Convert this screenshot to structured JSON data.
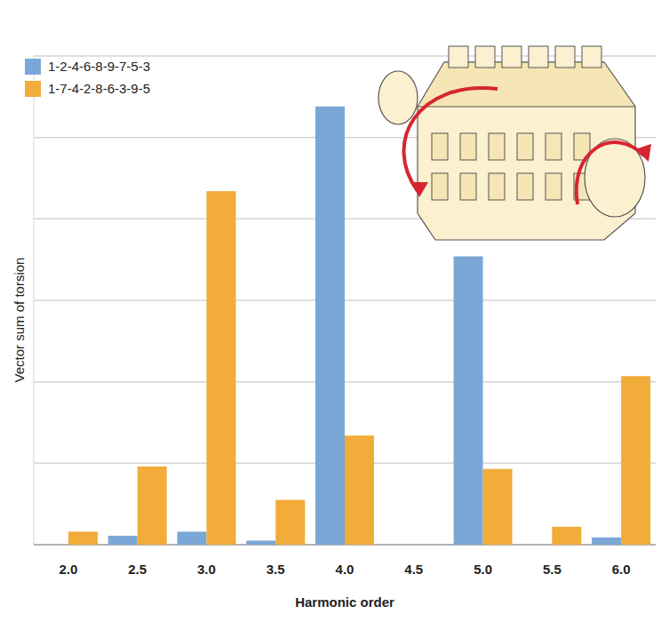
{
  "chart_data": {
    "type": "bar",
    "x_label": "Harmonic order",
    "y_label": "Vector sum of torsion",
    "categories": [
      "2.0",
      "2.5",
      "3.0",
      "3.5",
      "4.0",
      "4.5",
      "5.0",
      "5.5",
      "6.0"
    ],
    "series": [
      {
        "name": "1-2-4-6-8-9-7-5-3",
        "color": "#7ba7d7",
        "values": [
          0,
          0.11,
          0.16,
          0.05,
          5.38,
          0,
          3.54,
          0,
          0.09
        ]
      },
      {
        "name": "1-7-4-2-8-6-3-9-5",
        "color": "#f2ac3a",
        "values": [
          0.16,
          0.96,
          4.34,
          0.55,
          1.34,
          0,
          0.93,
          0.22,
          2.07
        ]
      }
    ],
    "ylim": [
      0,
      6
    ],
    "yticks": [
      0,
      1,
      2,
      3,
      4,
      5,
      6
    ],
    "grid": true,
    "legend": "top-left",
    "tick_labels": "x"
  }
}
